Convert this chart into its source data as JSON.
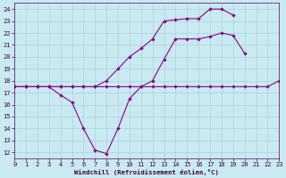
{
  "xlabel": "Windchill (Refroidissement éolien,°C)",
  "x": [
    0,
    1,
    2,
    3,
    4,
    5,
    6,
    7,
    8,
    9,
    10,
    11,
    12,
    13,
    14,
    15,
    16,
    17,
    18,
    19,
    20,
    21,
    22,
    23
  ],
  "line1_y": [
    17.5,
    17.5,
    17.5,
    17.5,
    17.5,
    17.5,
    17.5,
    17.5,
    17.5,
    17.5,
    17.5,
    17.5,
    17.5,
    17.5,
    17.5,
    17.5,
    17.5,
    17.5,
    17.5,
    17.5,
    17.5,
    17.5,
    17.5,
    18.0
  ],
  "line2_x": [
    0,
    1,
    2,
    3,
    4,
    5,
    6,
    7,
    8,
    9,
    10,
    11,
    12,
    13,
    14,
    15,
    16,
    17,
    18,
    19,
    20,
    21,
    22,
    23
  ],
  "line2_y": [
    17.5,
    17.5,
    17.5,
    17.5,
    16.8,
    16.2,
    14.0,
    12.2,
    11.9,
    14.0,
    16.5,
    17.5,
    18.0,
    19.8,
    21.5,
    21.5,
    21.5,
    21.7,
    22.0,
    21.8,
    20.3,
    null,
    null,
    null
  ],
  "line3_x": [
    0,
    1,
    2,
    3,
    4,
    5,
    6,
    7,
    8,
    9,
    10,
    11,
    12,
    13,
    14,
    15,
    16,
    17,
    18,
    19,
    20,
    21,
    22,
    23
  ],
  "line3_y": [
    17.5,
    17.5,
    17.5,
    17.5,
    17.5,
    17.5,
    17.5,
    17.5,
    18.0,
    19.0,
    20.0,
    20.7,
    21.5,
    23.0,
    23.1,
    23.2,
    23.2,
    24.0,
    24.0,
    23.5,
    null,
    null,
    null,
    null
  ],
  "line_color": "#8b008b",
  "bg_color": "#c8eaf0",
  "grid_color": "#a8ccd8",
  "xlim": [
    0,
    23
  ],
  "ylim": [
    11.5,
    24.5
  ],
  "yticks": [
    12,
    13,
    14,
    15,
    16,
    17,
    18,
    19,
    20,
    21,
    22,
    23,
    24
  ],
  "xticks": [
    0,
    1,
    2,
    3,
    4,
    5,
    6,
    7,
    8,
    9,
    10,
    11,
    12,
    13,
    14,
    15,
    16,
    17,
    18,
    19,
    20,
    21,
    22,
    23
  ],
  "tick_fontsize": 5.0,
  "xlabel_fontsize": 5.2
}
